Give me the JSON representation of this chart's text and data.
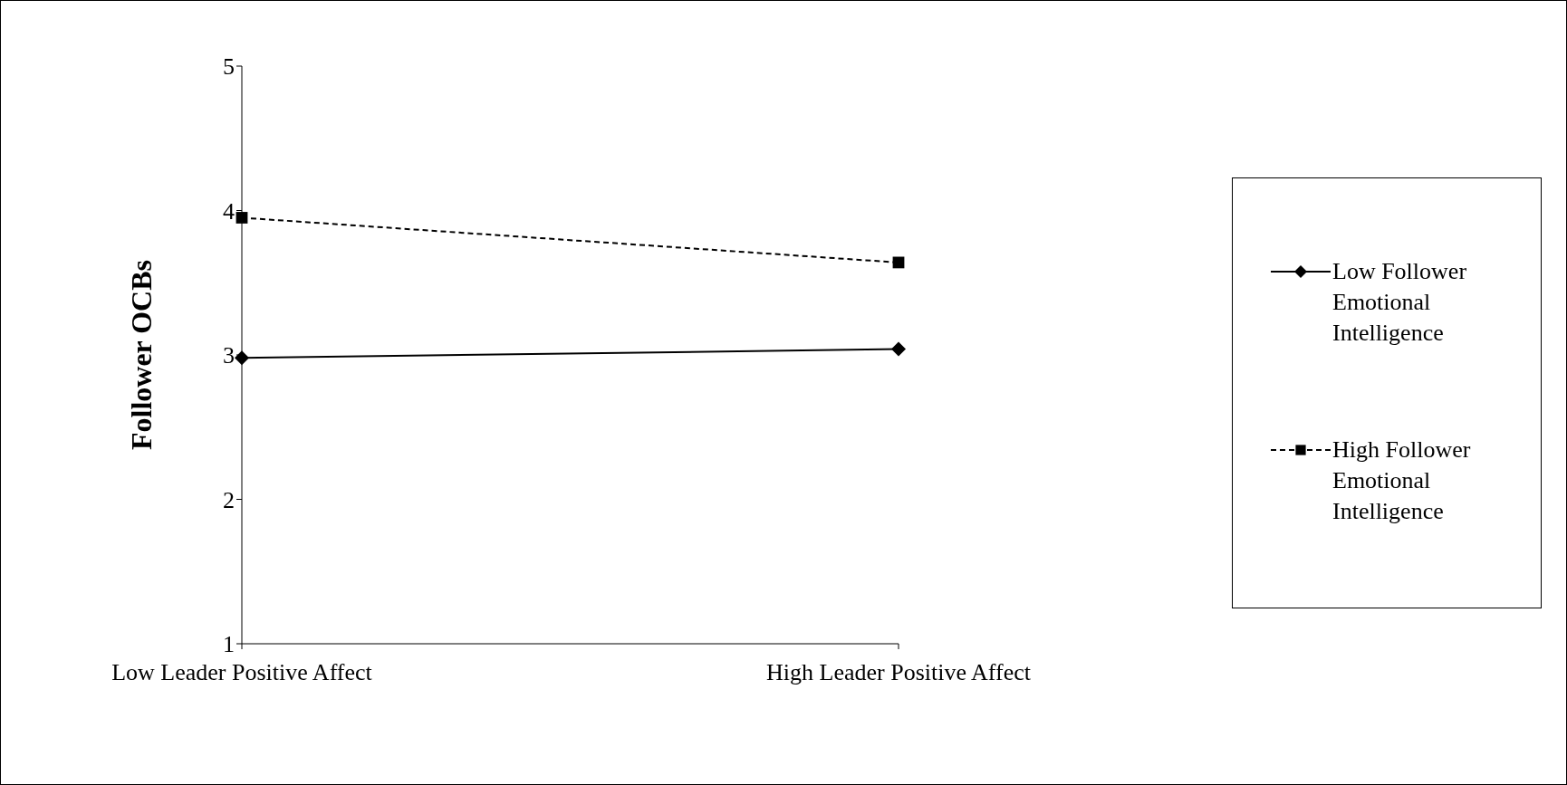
{
  "chart_data": {
    "type": "line",
    "ylabel": "Follower OCBs",
    "categories": [
      "Low Leader Positive Affect",
      "High Leader Positive Affect"
    ],
    "ylim": [
      1,
      5
    ],
    "yticks": [
      1,
      2,
      3,
      4,
      5
    ],
    "grid": false,
    "legend": "right",
    "series": [
      {
        "name": "Low Follower Emotional Intelligence",
        "color": "#000000",
        "values": [
          2.98,
          3.04
        ],
        "marker": "diamond",
        "line_style": "solid"
      },
      {
        "name": "High Follower Emotional Intelligence",
        "color": "#000000",
        "values": [
          3.95,
          3.64
        ],
        "marker": "square",
        "line_style": "dashed"
      }
    ]
  }
}
